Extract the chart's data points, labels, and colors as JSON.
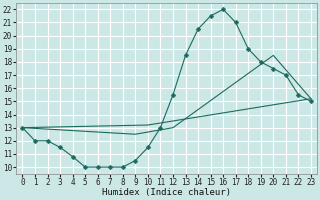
{
  "xlabel": "Humidex (Indice chaleur)",
  "bg_color": "#cce8e6",
  "grid_color": "#ffffff",
  "line_color": "#1a6b5e",
  "xlim": [
    -0.5,
    23.5
  ],
  "ylim": [
    9.5,
    22.5
  ],
  "xticks": [
    0,
    1,
    2,
    3,
    4,
    5,
    6,
    7,
    8,
    9,
    10,
    11,
    12,
    13,
    14,
    15,
    16,
    17,
    18,
    19,
    20,
    21,
    22,
    23
  ],
  "yticks": [
    10,
    11,
    12,
    13,
    14,
    15,
    16,
    17,
    18,
    19,
    20,
    21,
    22
  ],
  "curve1_x": [
    0,
    1,
    2,
    3,
    4,
    5,
    6,
    7,
    8,
    9,
    10,
    11,
    12,
    13,
    14,
    15,
    16,
    17,
    18,
    19,
    20,
    21,
    22,
    23
  ],
  "curve1_y": [
    13,
    12,
    12,
    11.5,
    10.8,
    10,
    10,
    10,
    10,
    10.5,
    11.5,
    13,
    15.5,
    18.5,
    20.5,
    21.5,
    22,
    21,
    19,
    18,
    17.5,
    17,
    15.5,
    15
  ],
  "curve2_x": [
    0,
    10,
    23
  ],
  "curve2_y": [
    13,
    13.2,
    15.2
  ],
  "curve3_x": [
    0,
    9,
    12,
    20,
    23
  ],
  "curve3_y": [
    13,
    12.5,
    13,
    18.5,
    15.2
  ]
}
